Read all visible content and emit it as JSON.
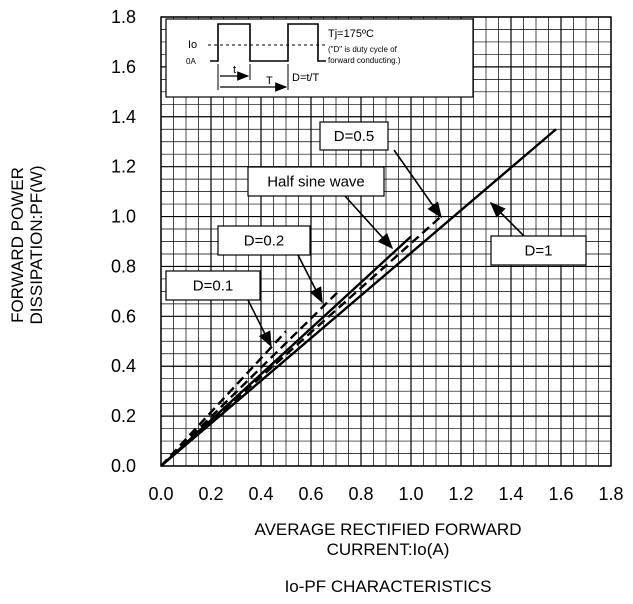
{
  "chart_data": {
    "type": "line",
    "title": "Io-PF CHARACTERISTICS",
    "xlabel": "AVERAGE RECTIFIED FORWARD CURRENT:Io(A)",
    "xlabel_line1": "AVERAGE RECTIFIED FORWARD",
    "xlabel_line2": "CURRENT:Io(A)",
    "ylabel_line1": "FORWARD POWER",
    "ylabel_line2": "DISSIPATION:PF(W)",
    "xlim": [
      0,
      1.8
    ],
    "ylim": [
      0,
      1.8
    ],
    "x_ticks": [
      "0.0",
      "0.2",
      "0.4",
      "0.6",
      "0.8",
      "1.0",
      "1.2",
      "1.4",
      "1.6",
      "1.8"
    ],
    "y_ticks": [
      "0.0",
      "0.2",
      "0.4",
      "0.6",
      "0.8",
      "1.0",
      "1.2",
      "1.4",
      "1.6",
      "1.8"
    ],
    "grid": true,
    "series": [
      {
        "name": "D=1",
        "style": "solid",
        "x": [
          0,
          1.58
        ],
        "y": [
          0,
          1.35
        ]
      },
      {
        "name": "Half sine wave",
        "style": "solid",
        "x": [
          0,
          1.0
        ],
        "y": [
          0,
          0.92
        ]
      },
      {
        "name": "D=0.5",
        "style": "dashed",
        "x": [
          0,
          1.12
        ],
        "y": [
          0,
          1.0
        ]
      },
      {
        "name": "D=0.2",
        "style": "dashed",
        "x": [
          0,
          0.71
        ],
        "y": [
          0,
          0.7
        ]
      },
      {
        "name": "D=0.1",
        "style": "dashed",
        "x": [
          0,
          0.5
        ],
        "y": [
          0,
          0.54
        ]
      }
    ],
    "labels": [
      {
        "text": "D=0.5",
        "box": true
      },
      {
        "text": "Half sine wave",
        "box": true
      },
      {
        "text": "D=0.2",
        "box": true
      },
      {
        "text": "D=0.1",
        "box": true
      },
      {
        "text": "D=1",
        "box": true
      }
    ],
    "inset": {
      "tj": "Tj=175ºC",
      "note1": "(\"D\" is duty cycle of",
      "note2": "forward conducting.)",
      "io_label": "Io",
      "zero_label": "0A",
      "t_label": "t",
      "T_label": "T",
      "d_label": "D=t/T"
    },
    "colors": {
      "line": "#000000",
      "grid": "#000000",
      "background": "#ffffff"
    }
  }
}
